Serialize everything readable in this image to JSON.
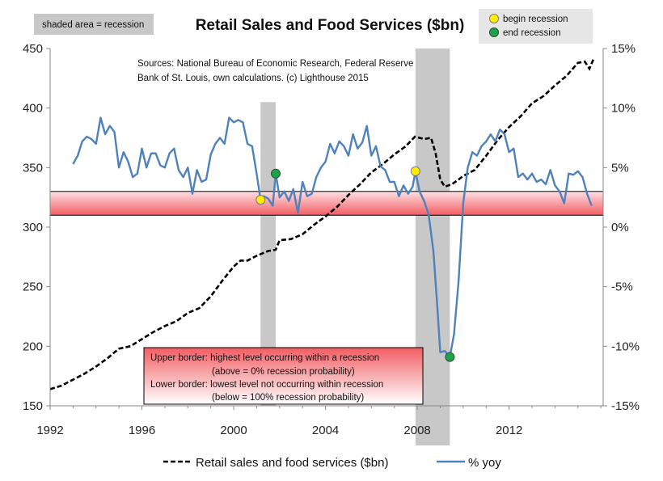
{
  "chart_data": {
    "type": "line",
    "title": "Retail Sales and Food Services ($bn)",
    "shaded_label": "shaded area = recession",
    "markers_legend": {
      "begin": "begin recession",
      "end": "end recession",
      "begin_color": "#ffee00",
      "end_color": "#1aa34a"
    },
    "source_lines": [
      "Sources: National Bureau of Economic Research, Federal Reserve",
      "Bank of St. Louis, own calculations. (c) Lighthouse 2015"
    ],
    "annotation_lines": [
      "Upper border: highest level occurring within a recession",
      "(above = 0% recession probability)",
      "Lower border: lowest level not occurring within recession",
      "(below = 100% recession probability)"
    ],
    "x_ticks": [
      "1992",
      "1996",
      "2000",
      "2004",
      "2008",
      "2012"
    ],
    "x_tick_values": [
      1992,
      1996,
      2000,
      2004,
      2008,
      2012
    ],
    "y_left_ticks": [
      "150",
      "200",
      "250",
      "300",
      "350",
      "400",
      "450"
    ],
    "y_left_tick_values": [
      150,
      200,
      250,
      300,
      350,
      400,
      450
    ],
    "y_right_ticks": [
      "-15%",
      "-10%",
      "-5%",
      "0%",
      "5%",
      "10%",
      "15%"
    ],
    "y_right_tick_values": [
      -15,
      -10,
      -5,
      0,
      5,
      10,
      15
    ],
    "xlim": [
      1992,
      2016.1
    ],
    "ylim_left": [
      150,
      450
    ],
    "ylim_right": [
      -15,
      15
    ],
    "recessions": [
      [
        2001.17,
        2001.83
      ],
      [
        2007.92,
        2009.42
      ]
    ],
    "threshold_band": [
      1.0,
      3.0
    ],
    "begin_points": [
      [
        2001.17,
        2.3
      ],
      [
        2007.92,
        4.7
      ]
    ],
    "end_points": [
      [
        2001.83,
        4.5
      ],
      [
        2009.42,
        -10.9
      ]
    ],
    "colors": {
      "retail": "#000000",
      "yoy": "#4f81bd",
      "recession": "#c8c8c8",
      "band_edge": "#f25d63"
    },
    "series": [
      {
        "name": "Retail sales and food services ($bn)",
        "axis": "left",
        "style": "dashed",
        "x": [
          1992.0,
          1992.5,
          1993.0,
          1993.5,
          1994.0,
          1994.5,
          1995.0,
          1995.5,
          1996.0,
          1996.5,
          1997.0,
          1997.5,
          1998.0,
          1998.5,
          1999.0,
          1999.5,
          2000.0,
          2000.3,
          2000.6,
          2001.0,
          2001.5,
          2001.83,
          2002.0,
          2002.5,
          2003.0,
          2003.5,
          2004.0,
          2004.5,
          2005.0,
          2005.5,
          2006.0,
          2006.5,
          2007.0,
          2007.5,
          2007.9,
          2008.3,
          2008.6,
          2008.8,
          2009.0,
          2009.2,
          2009.5,
          2009.8,
          2010.0,
          2010.5,
          2011.0,
          2011.5,
          2012.0,
          2012.5,
          2013.0,
          2013.5,
          2014.0,
          2014.5,
          2015.0,
          2015.3,
          2015.5,
          2015.7
        ],
        "y": [
          164,
          167,
          172,
          177,
          183,
          190,
          198,
          200,
          206,
          212,
          217,
          221,
          228,
          232,
          242,
          255,
          267,
          272,
          272,
          276,
          280,
          281,
          289,
          290,
          294,
          302,
          309,
          317,
          327,
          336,
          346,
          353,
          361,
          368,
          376,
          374,
          375,
          362,
          340,
          334,
          336,
          340,
          343,
          348,
          360,
          373,
          384,
          393,
          404,
          410,
          419,
          427,
          438,
          439,
          433,
          442
        ]
      },
      {
        "name": "% yoy",
        "axis": "right",
        "style": "solid",
        "x": [
          1993.0,
          1993.2,
          1993.4,
          1993.6,
          1993.8,
          1994.0,
          1994.2,
          1994.4,
          1994.6,
          1994.8,
          1995.0,
          1995.2,
          1995.4,
          1995.6,
          1995.8,
          1996.0,
          1996.2,
          1996.4,
          1996.6,
          1996.8,
          1997.0,
          1997.2,
          1997.4,
          1997.6,
          1997.8,
          1998.0,
          1998.2,
          1998.4,
          1998.6,
          1998.8,
          1999.0,
          1999.2,
          1999.4,
          1999.6,
          1999.8,
          2000.0,
          2000.2,
          2000.4,
          2000.6,
          2000.8,
          2001.0,
          2001.17,
          2001.3,
          2001.5,
          2001.7,
          2001.83,
          2002.0,
          2002.2,
          2002.4,
          2002.6,
          2002.8,
          2003.0,
          2003.2,
          2003.4,
          2003.6,
          2003.8,
          2004.0,
          2004.2,
          2004.4,
          2004.6,
          2004.8,
          2005.0,
          2005.2,
          2005.4,
          2005.6,
          2005.8,
          2006.0,
          2006.2,
          2006.4,
          2006.6,
          2006.8,
          2007.0,
          2007.2,
          2007.4,
          2007.6,
          2007.8,
          2007.92,
          2008.1,
          2008.3,
          2008.5,
          2008.7,
          2008.85,
          2009.0,
          2009.2,
          2009.42,
          2009.6,
          2009.8,
          2010.0,
          2010.2,
          2010.4,
          2010.6,
          2010.8,
          2011.0,
          2011.2,
          2011.4,
          2011.6,
          2011.8,
          2012.0,
          2012.2,
          2012.4,
          2012.6,
          2012.8,
          2013.0,
          2013.2,
          2013.4,
          2013.6,
          2013.8,
          2014.0,
          2014.2,
          2014.4,
          2014.6,
          2014.8,
          2015.0,
          2015.2,
          2015.4,
          2015.6
        ],
        "y": [
          5.3,
          6.0,
          7.2,
          7.6,
          7.4,
          7.0,
          9.2,
          7.8,
          8.5,
          8.0,
          5.0,
          6.3,
          5.5,
          4.2,
          4.5,
          6.6,
          5.0,
          6.2,
          6.2,
          5.2,
          5.0,
          6.2,
          6.6,
          4.8,
          4.2,
          5.0,
          2.8,
          4.8,
          3.8,
          4.0,
          6.1,
          7.0,
          7.5,
          7.0,
          9.2,
          8.8,
          9.0,
          8.8,
          7.0,
          6.8,
          4.5,
          2.3,
          2.6,
          2.4,
          1.8,
          4.5,
          2.5,
          3.0,
          2.2,
          3.2,
          1.2,
          3.8,
          2.6,
          2.8,
          4.2,
          5.0,
          5.5,
          7.0,
          6.2,
          7.2,
          6.8,
          6.0,
          7.8,
          6.6,
          7.1,
          8.5,
          6.0,
          6.8,
          5.1,
          4.8,
          3.8,
          3.8,
          2.6,
          3.5,
          2.8,
          3.4,
          4.7,
          3.0,
          2.2,
          1.0,
          -2.0,
          -6.0,
          -10.5,
          -10.4,
          -10.9,
          -9.0,
          -4.5,
          2.0,
          5.0,
          6.3,
          6.0,
          6.8,
          7.2,
          7.8,
          7.2,
          8.2,
          7.8,
          6.3,
          6.6,
          4.2,
          4.5,
          4.0,
          4.5,
          3.8,
          4.0,
          3.6,
          4.8,
          3.5,
          3.0,
          2.0,
          4.5,
          4.4,
          4.7,
          4.2,
          2.8,
          1.8
        ]
      }
    ]
  }
}
